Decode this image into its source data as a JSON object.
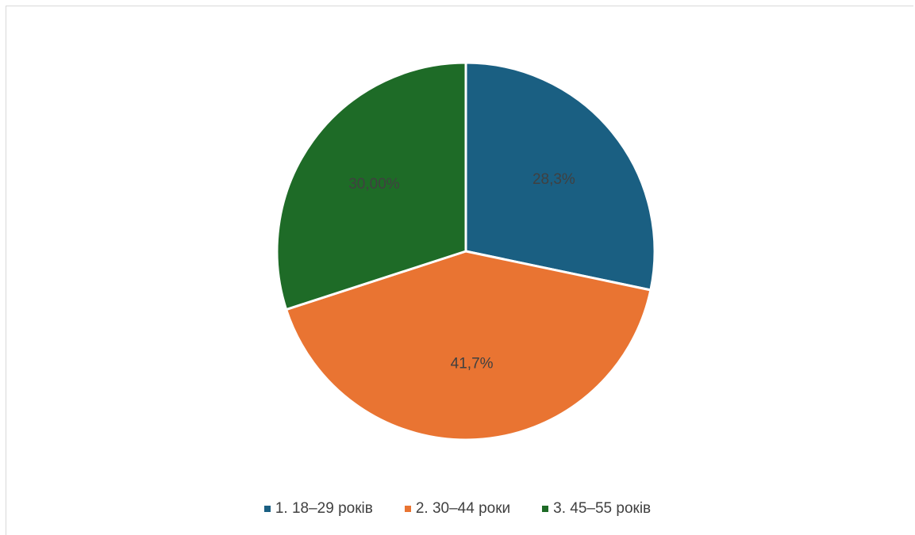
{
  "chart_data": {
    "type": "pie",
    "categories": [
      "1. 18–29 років",
      "2. 30–44 роки",
      "3. 45–55 років"
    ],
    "values": [
      28.3,
      41.7,
      30.0
    ],
    "data_labels": [
      "28,3%",
      "41,7%",
      "30,00%"
    ],
    "colors": [
      "#1a5f82",
      "#e97432",
      "#1e6b27"
    ],
    "legend_position": "bottom"
  }
}
